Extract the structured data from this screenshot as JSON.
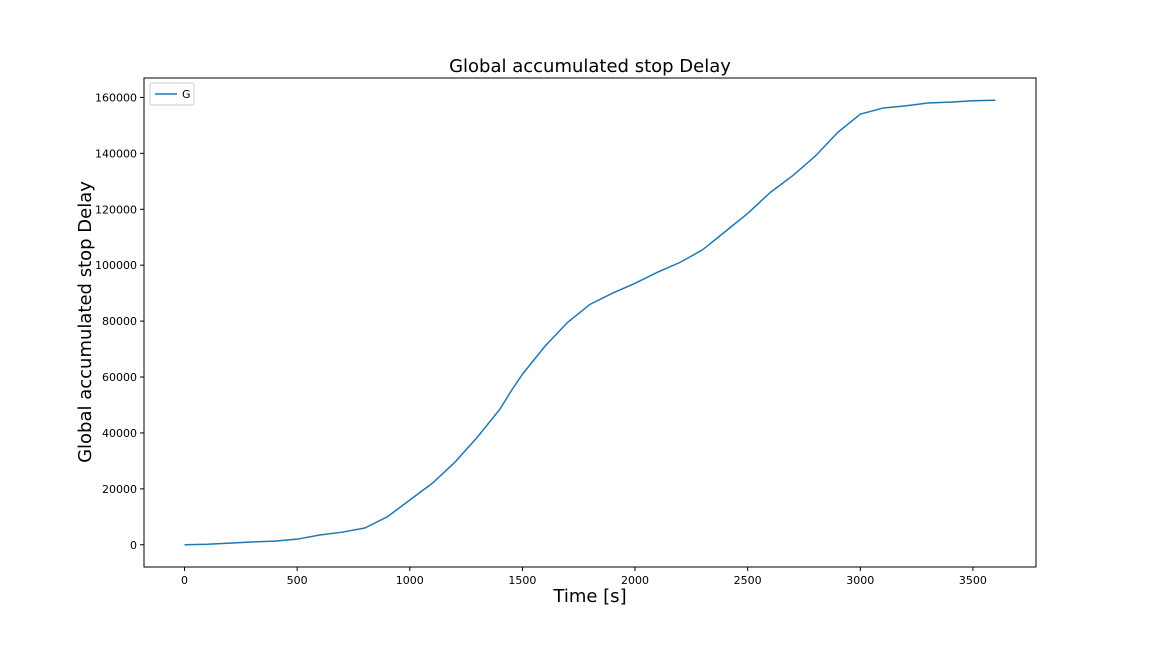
{
  "chart_data": {
    "type": "line",
    "title": "Global accumulated stop Delay",
    "x_label": "Time [s]",
    "y_label": "Global accumulated stop Delay",
    "x": [
      0,
      100,
      200,
      300,
      400,
      500,
      600,
      700,
      800,
      900,
      1000,
      1100,
      1200,
      1300,
      1400,
      1450,
      1500,
      1600,
      1700,
      1800,
      1900,
      2000,
      2100,
      2200,
      2300,
      2400,
      2500,
      2600,
      2700,
      2800,
      2900,
      3000,
      3100,
      3200,
      3300,
      3400,
      3500,
      3600
    ],
    "series": [
      {
        "name": "G",
        "color": "#1f77b4",
        "values": [
          0,
          200,
          600,
          1000,
          1300,
          2000,
          3500,
          4500,
          6000,
          10000,
          16000,
          22000,
          29500,
          38500,
          48500,
          55000,
          61000,
          71000,
          79500,
          86000,
          90000,
          93500,
          97500,
          101000,
          105500,
          112000,
          118500,
          126000,
          132000,
          139000,
          147500,
          154000,
          156200,
          157000,
          158000,
          158300,
          158800,
          159000
        ]
      }
    ],
    "xlim": [
      -180,
      3780
    ],
    "xticks": [
      0,
      500,
      1000,
      1500,
      2000,
      2500,
      3000,
      3500
    ],
    "ylim": [
      -7950,
      166950
    ],
    "yticks": [
      0,
      20000,
      40000,
      60000,
      80000,
      100000,
      120000,
      140000,
      160000
    ],
    "legend": "upper left"
  }
}
